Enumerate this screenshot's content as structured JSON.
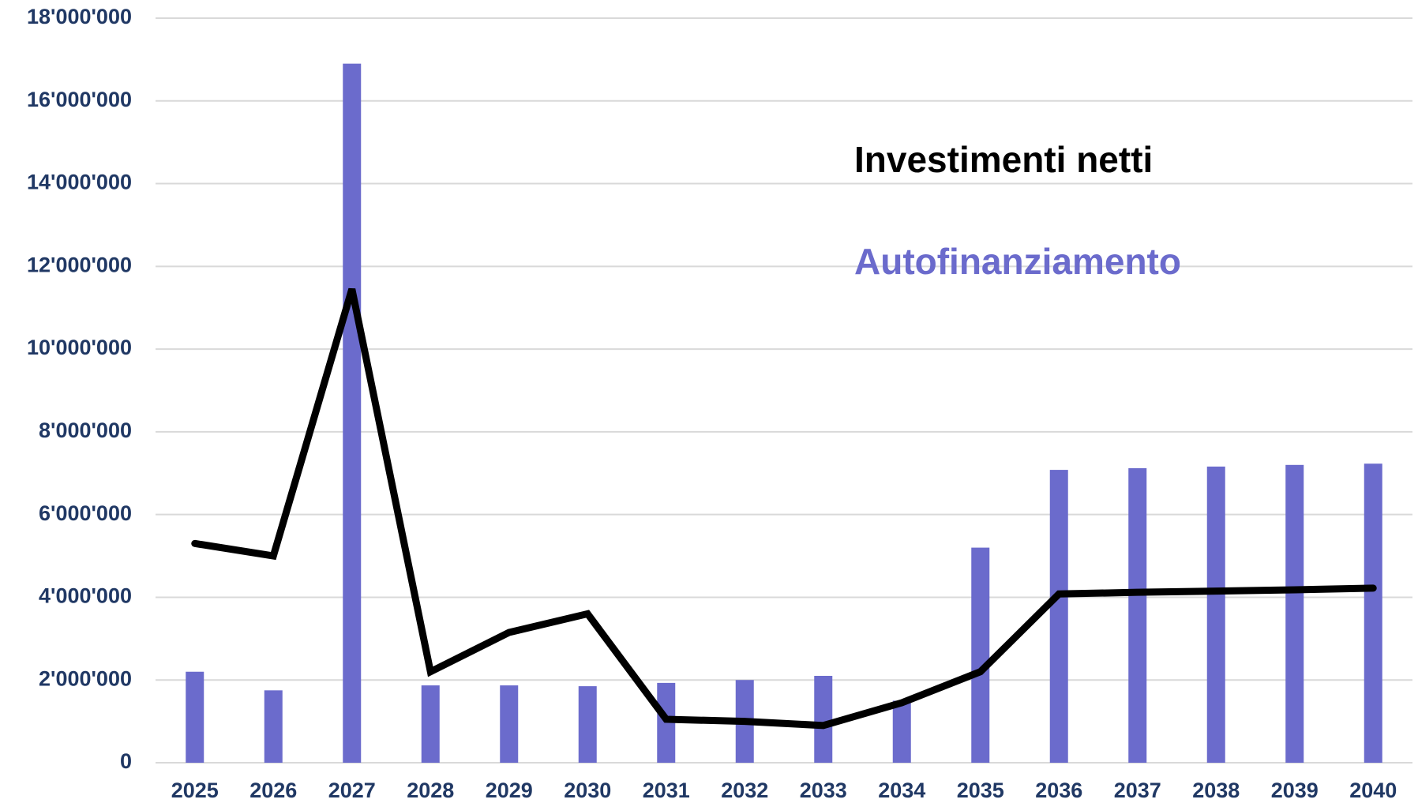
{
  "chart_data": {
    "type": "bar_line",
    "categories": [
      "2025",
      "2026",
      "2027",
      "2028",
      "2029",
      "2030",
      "2031",
      "2032",
      "2033",
      "2034",
      "2035",
      "2036",
      "2037",
      "2038",
      "2039",
      "2040"
    ],
    "series": [
      {
        "name": "Investimenti netti",
        "type": "line",
        "color": "#000000",
        "values": [
          5300000,
          5000000,
          11450000,
          2200000,
          3150000,
          3600000,
          1050000,
          1000000,
          900000,
          1450000,
          2200000,
          4080000,
          4120000,
          4150000,
          4180000,
          4220000
        ]
      },
      {
        "name": "Autofinanziamento",
        "type": "bar",
        "color": "#6b6bcc",
        "values": [
          2200000,
          1750000,
          16900000,
          1870000,
          1870000,
          1850000,
          1930000,
          2000000,
          2100000,
          1500000,
          5200000,
          7080000,
          7120000,
          7160000,
          7200000,
          7230000
        ]
      }
    ],
    "ylim": [
      0,
      18000000
    ],
    "yticks": [
      0,
      {
        "value": 2000000,
        "label": "2'000'000"
      },
      {
        "value": 4000000,
        "label": "4'000'000"
      },
      {
        "value": 6000000,
        "label": "6'000'000"
      },
      {
        "value": 8000000,
        "label": "8'000'000"
      },
      {
        "value": 10000000,
        "label": "10'000'000"
      },
      {
        "value": 12000000,
        "label": "12'000'000"
      },
      {
        "value": 14000000,
        "label": "14'000'000"
      },
      {
        "value": 16000000,
        "label": "16'000'000"
      },
      {
        "value": 18000000,
        "label": "18'000'000"
      }
    ],
    "grid": true
  }
}
